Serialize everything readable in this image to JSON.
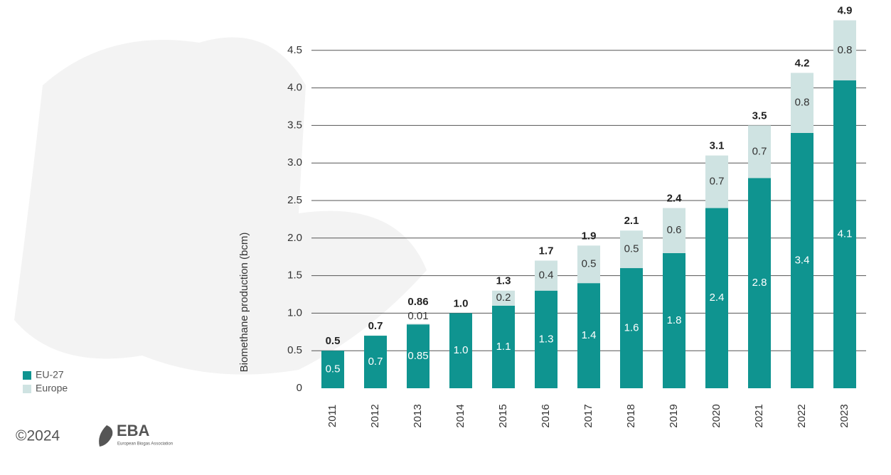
{
  "chart_data": {
    "type": "stacked-bar",
    "y_label": "Biomethane production (bcm)",
    "categories": [
      "2011",
      "2012",
      "2013",
      "2014",
      "2015",
      "2016",
      "2017",
      "2018",
      "2019",
      "2020",
      "2021",
      "2022",
      "2023"
    ],
    "series": [
      {
        "name": "EU-27",
        "color": "#0f9490",
        "label_color": "#ffffff",
        "values": [
          0.5,
          0.7,
          0.85,
          1.0,
          1.1,
          1.3,
          1.4,
          1.6,
          1.8,
          2.4,
          2.8,
          3.4,
          4.1
        ],
        "value_labels": [
          "0.5",
          "0.7",
          "0.85",
          "1.0",
          "1.1",
          "1.3",
          "1.4",
          "1.6",
          "1.8",
          "2.4",
          "2.8",
          "3.4",
          "4.1"
        ]
      },
      {
        "name": "Europe",
        "color": "#cfe3e2",
        "label_color": "#333333",
        "values": [
          null,
          null,
          0.01,
          null,
          0.2,
          0.4,
          0.5,
          0.5,
          0.6,
          0.7,
          0.7,
          0.8,
          0.8
        ],
        "value_labels": [
          null,
          null,
          "0.01",
          null,
          "0.2",
          "0.4",
          "0.5",
          "0.5",
          "0.6",
          "0.7",
          "0.7",
          "0.8",
          "0.8"
        ]
      }
    ],
    "totals": {
      "values": [
        0.5,
        0.7,
        0.86,
        1.0,
        1.3,
        1.7,
        1.9,
        2.1,
        2.4,
        3.1,
        3.5,
        4.2,
        4.9
      ],
      "value_labels": [
        "0.5",
        "0.7",
        "0.86",
        "1.0",
        "1.3",
        "1.7",
        "1.9",
        "2.1",
        "2.4",
        "3.1",
        "3.5",
        "4.2",
        "4.9"
      ]
    },
    "ylim": [
      0,
      5
    ],
    "yticks": [
      0,
      0.5,
      {
        "value": 1,
        "label": "1.0"
      },
      1.5,
      {
        "value": 2,
        "label": "2.0"
      },
      2.5,
      {
        "value": 3,
        "label": "3.0"
      },
      3.5,
      {
        "value": 4,
        "label": "4.0"
      },
      4.5
    ],
    "grid": true
  },
  "footer": {
    "copyright": "©2024",
    "logo": "EBA",
    "logo_subtitle": "European Biogas Association"
  }
}
